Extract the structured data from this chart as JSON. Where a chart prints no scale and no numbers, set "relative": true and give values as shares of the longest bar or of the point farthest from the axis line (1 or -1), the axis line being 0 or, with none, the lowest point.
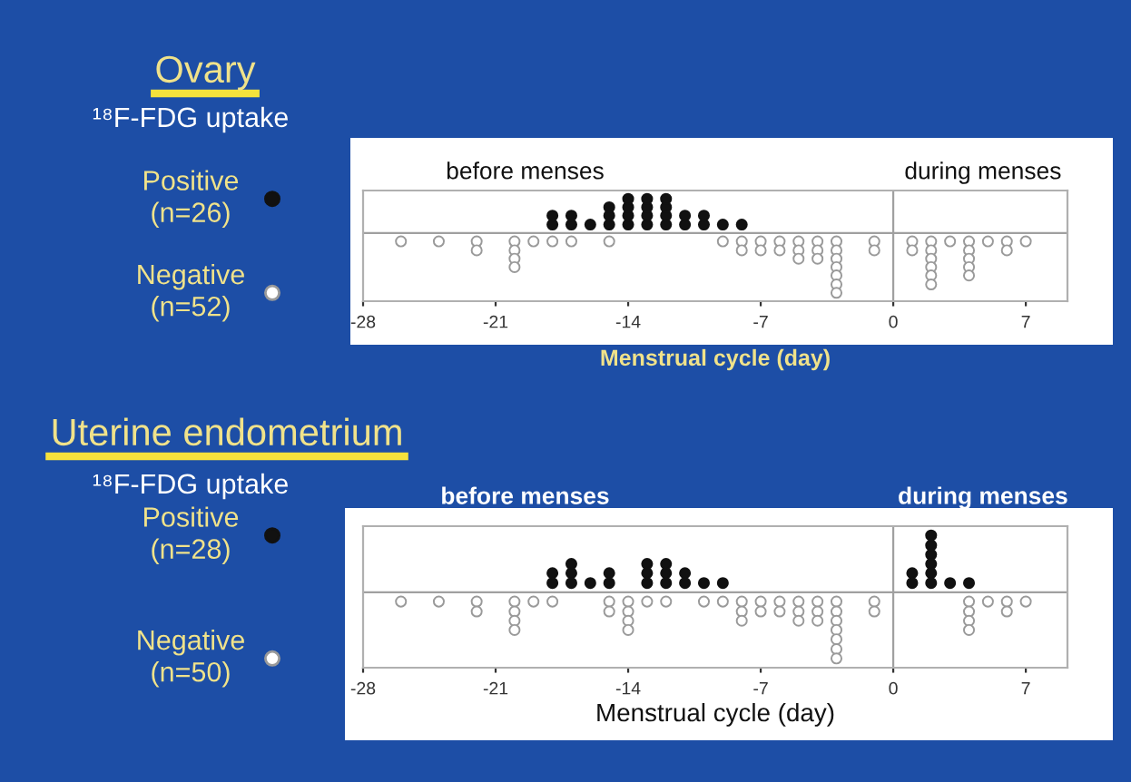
{
  "chart_data": [
    {
      "type": "scatter",
      "relative": true,
      "title": "Ovary",
      "subtitle": "¹⁸F-FDG uptake",
      "xlabel": "Menstrual cycle (day)",
      "annotations": [
        "before menses",
        "during menses"
      ],
      "xlim": [
        -28,
        9.2
      ],
      "xticks": [
        -28,
        -21,
        -14,
        -7,
        0,
        7
      ],
      "tick_labels": "x",
      "marker": "circle",
      "ref_lines": [
        {
          "axis": "x",
          "value": 0,
          "color": "#a0a0a0"
        }
      ],
      "legend": "left",
      "series": [
        {
          "name": "Positive\n(n=26)",
          "color": "#111111",
          "x": [
            -18,
            -18,
            -17,
            -17,
            -16,
            -15,
            -15,
            -15,
            -14,
            -14,
            -14,
            -14,
            -13,
            -13,
            -13,
            -13,
            -12,
            -12,
            -12,
            -12,
            -11,
            -11,
            -10,
            -10,
            -9,
            -8
          ],
          "values": [
            0.14,
            0.29,
            0.14,
            0.29,
            0.14,
            0.14,
            0.29,
            0.43,
            0.14,
            0.29,
            0.43,
            0.57,
            0.14,
            0.29,
            0.43,
            0.57,
            0.14,
            0.29,
            0.43,
            0.57,
            0.14,
            0.29,
            0.14,
            0.29,
            0.14,
            0.14
          ]
        },
        {
          "name": "Negative\n(n=52)",
          "color": "#ffffff",
          "x": [
            -26,
            -24,
            -22,
            -22,
            -20,
            -20,
            -20,
            -20,
            -19,
            -18,
            -17,
            -15,
            -9,
            -8,
            -8,
            -7,
            -7,
            -6,
            -6,
            -5,
            -5,
            -5,
            -4,
            -4,
            -4,
            -3,
            -3,
            -3,
            -3,
            -3,
            -3,
            -3,
            -1,
            -1,
            1,
            1,
            2,
            2,
            2,
            2,
            2,
            2,
            3,
            4,
            4,
            4,
            4,
            4,
            5,
            6,
            6,
            7
          ],
          "values": [
            -0.14,
            -0.14,
            -0.14,
            -0.29,
            -0.14,
            -0.29,
            -0.43,
            -0.57,
            -0.14,
            -0.14,
            -0.14,
            -0.14,
            -0.14,
            -0.14,
            -0.29,
            -0.14,
            -0.29,
            -0.14,
            -0.29,
            -0.14,
            -0.29,
            -0.43,
            -0.14,
            -0.29,
            -0.43,
            -0.14,
            -0.29,
            -0.43,
            -0.57,
            -0.71,
            -0.86,
            -1,
            -0.14,
            -0.29,
            -0.14,
            -0.29,
            -0.14,
            -0.29,
            -0.43,
            -0.57,
            -0.71,
            -0.86,
            -0.14,
            -0.14,
            -0.29,
            -0.43,
            -0.57,
            -0.71,
            -0.14,
            -0.14,
            -0.29,
            -0.14
          ]
        }
      ]
    },
    {
      "type": "scatter",
      "relative": true,
      "title": "Uterine endometrium",
      "subtitle": "¹⁸F-FDG uptake",
      "xlabel": "Menstrual cycle (day)",
      "annotations": [
        "before menses",
        "during menses"
      ],
      "xlim": [
        -28,
        9.2
      ],
      "xticks": [
        -28,
        -21,
        -14,
        -7,
        0,
        7
      ],
      "tick_labels": "x",
      "marker": "circle",
      "ref_lines": [
        {
          "axis": "x",
          "value": 0,
          "color": "#a0a0a0"
        }
      ],
      "legend": "left",
      "series": [
        {
          "name": "Positive\n(n=28)",
          "color": "#111111",
          "x": [
            -18,
            -18,
            -17,
            -17,
            -17,
            -16,
            -15,
            -15,
            -13,
            -13,
            -13,
            -12,
            -12,
            -12,
            -11,
            -11,
            -10,
            -9,
            1,
            1,
            2,
            2,
            2,
            2,
            2,
            2,
            3,
            4
          ],
          "values": [
            0.14,
            0.29,
            0.14,
            0.29,
            0.43,
            0.14,
            0.14,
            0.29,
            0.14,
            0.29,
            0.43,
            0.14,
            0.29,
            0.43,
            0.14,
            0.29,
            0.14,
            0.14,
            0.14,
            0.29,
            0.14,
            0.29,
            0.43,
            0.57,
            0.71,
            0.86,
            0.14,
            0.14
          ]
        },
        {
          "name": "Negative\n(n=50)",
          "color": "#ffffff",
          "x": [
            -26,
            -24,
            -22,
            -22,
            -20,
            -20,
            -20,
            -20,
            -19,
            -18,
            -15,
            -15,
            -14,
            -14,
            -14,
            -14,
            -13,
            -12,
            -10,
            -9,
            -8,
            -8,
            -8,
            -7,
            -7,
            -6,
            -6,
            -5,
            -5,
            -5,
            -4,
            -4,
            -4,
            -3,
            -3,
            -3,
            -3,
            -3,
            -3,
            -3,
            -1,
            -1,
            4,
            4,
            4,
            4,
            5,
            6,
            6,
            7
          ],
          "values": [
            -0.14,
            -0.14,
            -0.14,
            -0.29,
            -0.14,
            -0.29,
            -0.43,
            -0.57,
            -0.14,
            -0.14,
            -0.14,
            -0.29,
            -0.14,
            -0.29,
            -0.43,
            -0.57,
            -0.14,
            -0.14,
            -0.14,
            -0.14,
            -0.14,
            -0.29,
            -0.43,
            -0.14,
            -0.29,
            -0.14,
            -0.29,
            -0.14,
            -0.29,
            -0.43,
            -0.14,
            -0.29,
            -0.43,
            -0.14,
            -0.29,
            -0.43,
            -0.57,
            -0.71,
            -0.86,
            -1,
            -0.14,
            -0.29,
            -0.14,
            -0.29,
            -0.43,
            -0.57,
            -0.14,
            -0.14,
            -0.29,
            -0.14
          ]
        }
      ]
    }
  ]
}
